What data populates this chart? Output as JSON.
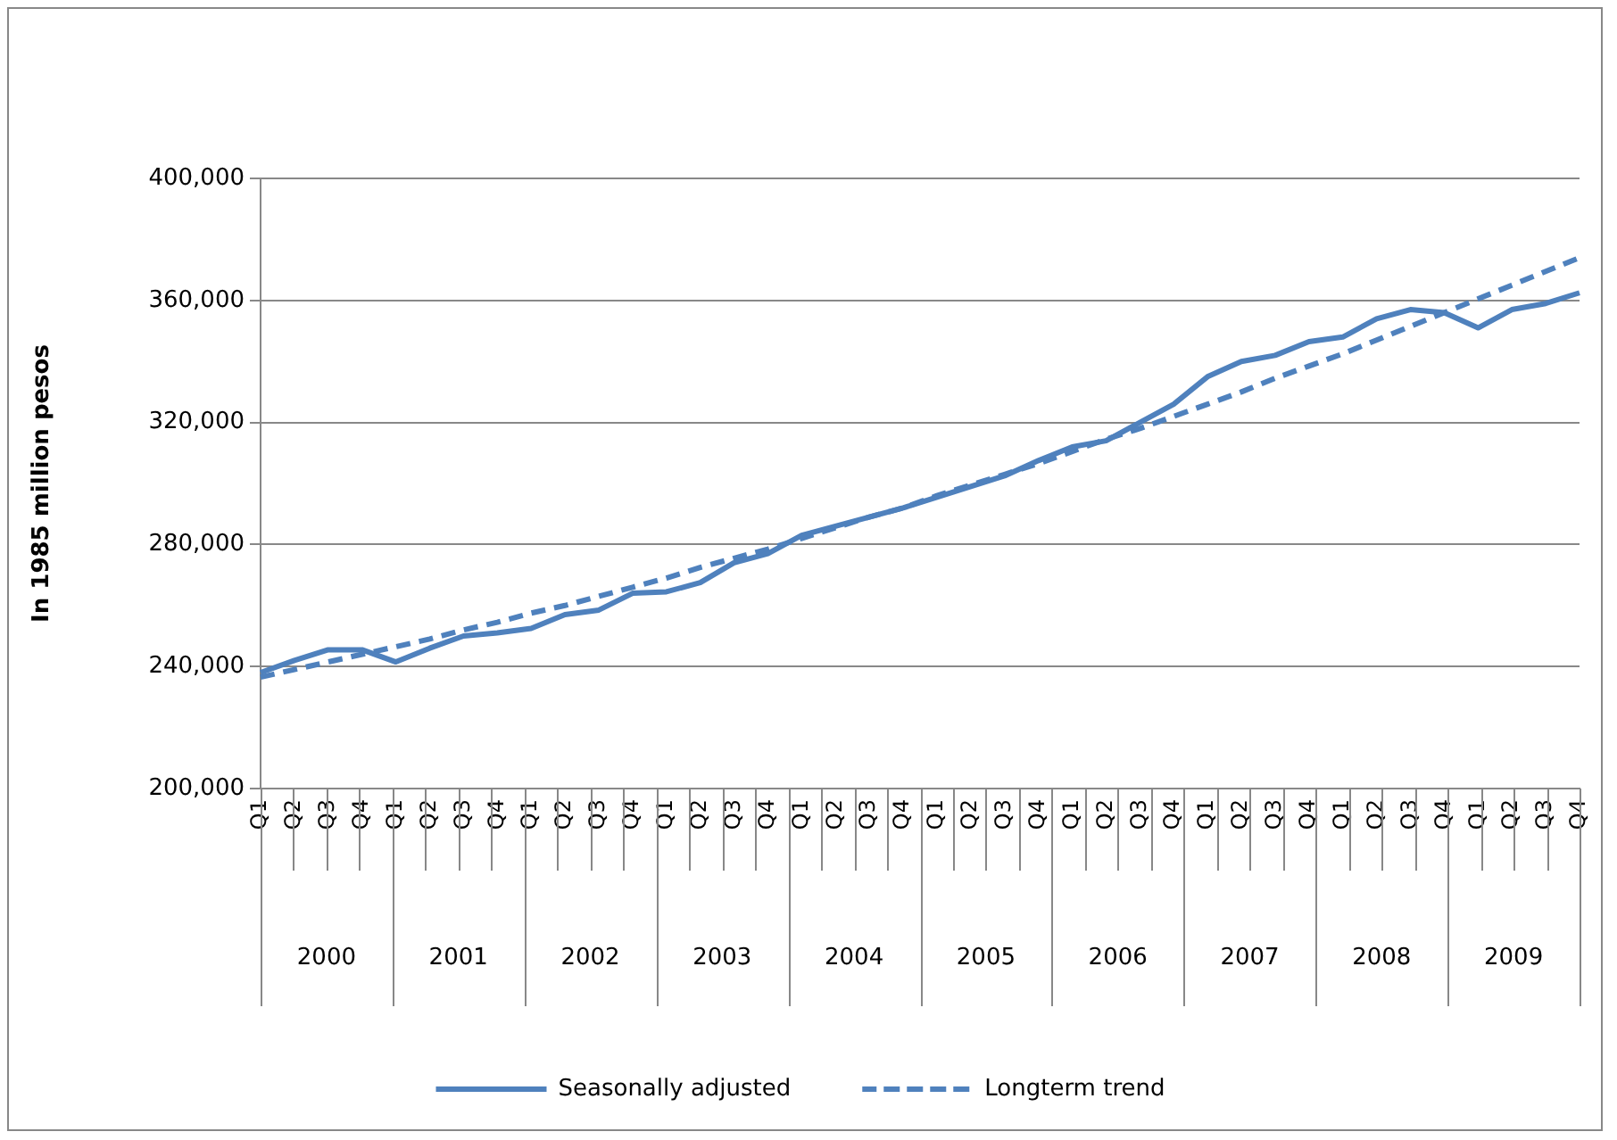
{
  "chart_data": {
    "type": "line",
    "ylabel": "In 1985 million pesos",
    "categories": [
      "Q1",
      "Q2",
      "Q3",
      "Q4",
      "Q1",
      "Q2",
      "Q3",
      "Q4",
      "Q1",
      "Q2",
      "Q3",
      "Q4",
      "Q1",
      "Q2",
      "Q3",
      "Q4",
      "Q1",
      "Q2",
      "Q3",
      "Q4",
      "Q1",
      "Q2",
      "Q3",
      "Q4",
      "Q1",
      "Q2",
      "Q3",
      "Q4",
      "Q1",
      "Q2",
      "Q3",
      "Q4",
      "Q1",
      "Q2",
      "Q3",
      "Q4",
      "Q1",
      "Q2",
      "Q3",
      "Q4"
    ],
    "annotations": [
      "2000",
      "2001",
      "2002",
      "2003",
      "2004",
      "2005",
      "2006",
      "2007",
      "2008",
      "2009"
    ],
    "series": [
      {
        "name": "Seasonally adjusted",
        "color": "#4f81bd",
        "line_style": "solid",
        "values": [
          238000,
          242000,
          245500,
          245500,
          241500,
          246000,
          250000,
          251000,
          252500,
          257000,
          258500,
          264000,
          264500,
          267500,
          274000,
          277000,
          283000,
          286000,
          289000,
          292000,
          295500,
          299000,
          302500,
          307500,
          312000,
          314000,
          320000,
          326000,
          335000,
          340000,
          342000,
          346500,
          348000,
          354000,
          357000,
          356000,
          351000,
          357000,
          359000,
          362500
        ]
      },
      {
        "name": "Longterm trend",
        "color": "#4f81bd",
        "line_style": "dashed",
        "values": [
          236500,
          239000,
          241500,
          244000,
          246500,
          249000,
          252000,
          254500,
          257500,
          260000,
          263000,
          266000,
          269000,
          272500,
          275500,
          278500,
          282000,
          285500,
          289000,
          292000,
          296000,
          299500,
          303000,
          306500,
          310500,
          314500,
          318000,
          322000,
          326000,
          330000,
          334500,
          338500,
          342500,
          347000,
          351500,
          356000,
          360500,
          365000,
          369500,
          374000
        ]
      }
    ],
    "ylim": [
      200000,
      400000
    ],
    "yticks": [
      {
        "value": 200000,
        "label": "200,000"
      },
      {
        "value": 240000,
        "label": "240,000"
      },
      {
        "value": 280000,
        "label": "280,000"
      },
      {
        "value": 320000,
        "label": "320,000"
      },
      {
        "value": 360000,
        "label": "360,000"
      },
      {
        "value": 400000,
        "label": "400,000"
      }
    ],
    "grid": "y",
    "legend": "bottom",
    "marker": "none"
  }
}
